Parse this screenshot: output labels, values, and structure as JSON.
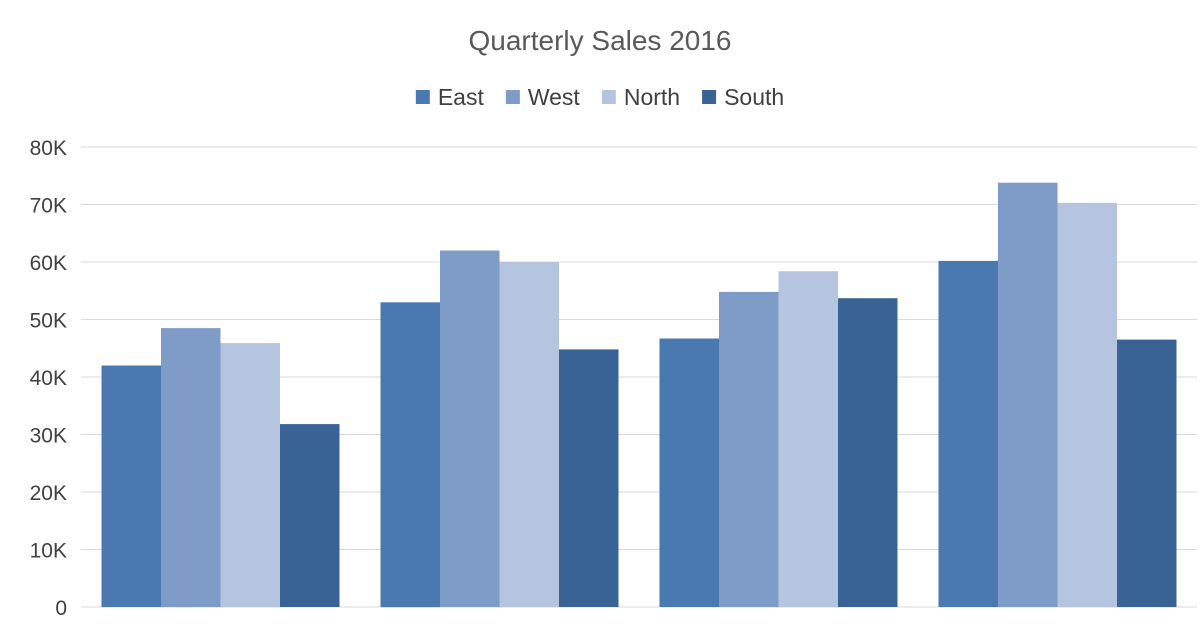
{
  "chart_data": {
    "type": "bar",
    "title": "Quarterly Sales 2016",
    "xlabel": "",
    "ylabel": "",
    "categories": [
      "",
      "",
      "",
      ""
    ],
    "series": [
      {
        "name": "East",
        "color": "#4a78b1",
        "values": [
          42000,
          53000,
          46700,
          60200
        ]
      },
      {
        "name": "West",
        "color": "#7f9bc8",
        "values": [
          48500,
          62000,
          54800,
          73800
        ]
      },
      {
        "name": "North",
        "color": "#b5c4df",
        "values": [
          45900,
          60000,
          58400,
          70300
        ]
      },
      {
        "name": "South",
        "color": "#3a6395",
        "values": [
          31800,
          44800,
          53700,
          46500
        ]
      }
    ],
    "ylim": [
      0,
      80000
    ],
    "yticks": [
      {
        "value": 0,
        "label": "0"
      },
      {
        "value": 10000,
        "label": "10K"
      },
      {
        "value": 20000,
        "label": "20K"
      },
      {
        "value": 30000,
        "label": "30K"
      },
      {
        "value": 40000,
        "label": "40K"
      },
      {
        "value": 50000,
        "label": "50K"
      },
      {
        "value": 60000,
        "label": "60K"
      },
      {
        "value": 70000,
        "label": "70K"
      },
      {
        "value": 80000,
        "label": "80K"
      }
    ],
    "grid": true,
    "legend_position": "top"
  }
}
